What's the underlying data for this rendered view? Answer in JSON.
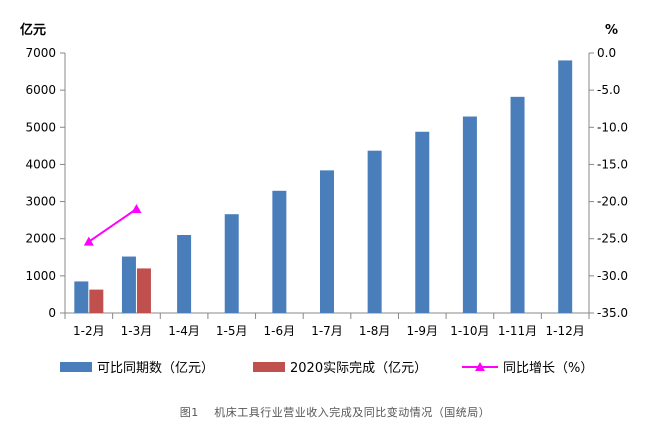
{
  "chart_data": {
    "type": "bar",
    "categories": [
      "1-2月",
      "1-3月",
      "1-4月",
      "1-5月",
      "1-6月",
      "1-7月",
      "1-8月",
      "1-9月",
      "1-10月",
      "1-11月",
      "1-12月"
    ],
    "series": [
      {
        "name": "可比同期数（亿元）",
        "type": "bar",
        "axis": "left",
        "color": "#4a7ebb",
        "values": [
          850,
          1520,
          2100,
          2660,
          3290,
          3840,
          4370,
          4880,
          5290,
          5820,
          6800
        ]
      },
      {
        "name": "2020实际完成（亿元）",
        "type": "bar",
        "axis": "left",
        "color": "#c0504d",
        "values": [
          630,
          1200,
          null,
          null,
          null,
          null,
          null,
          null,
          null,
          null,
          null
        ]
      },
      {
        "name": "同比增长（%）",
        "type": "line",
        "axis": "right",
        "color": "#ff00ff",
        "values": [
          -25.4,
          -21.0,
          null,
          null,
          null,
          null,
          null,
          null,
          null,
          null,
          null
        ]
      }
    ],
    "ylabel": "亿元",
    "y2label": "%",
    "ylim": [
      0,
      7000
    ],
    "y2lim": [
      -35,
      0
    ],
    "yticks": [
      "0",
      "1000",
      "2000",
      "3000",
      "4000",
      "5000",
      "6000",
      "7000"
    ],
    "y2ticks": [
      "0.0",
      "-5.0",
      "-10.0",
      "-15.0",
      "-20.0",
      "-25.0",
      "-30.0",
      "-35.0"
    ],
    "legend_position": "bottom",
    "grid": false
  },
  "caption": "图1　 机床工具行业营业收入完成及同比变动情况（国统局）"
}
